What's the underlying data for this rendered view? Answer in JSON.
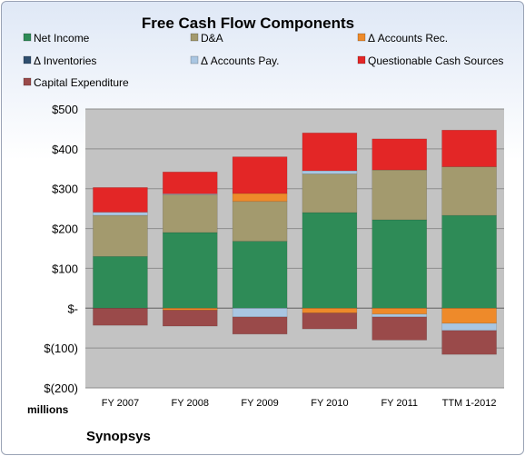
{
  "chart_data": {
    "type": "bar",
    "stacked": true,
    "title": "Free Cash Flow Components",
    "company": "Synopsys",
    "unit_label": "millions",
    "categories": [
      "FY 2007",
      "FY 2008",
      "FY 2009",
      "FY 2010",
      "FY 2011",
      "TTM 1-2012"
    ],
    "ylim": [
      -200,
      500
    ],
    "y_ticks": [
      -200,
      -100,
      0,
      100,
      200,
      300,
      400,
      500
    ],
    "y_tick_labels": [
      "$(200)",
      "$(100)",
      "$-",
      "$100",
      "$200",
      "$300",
      "$400",
      "$500"
    ],
    "grid": true,
    "legend_position": "top",
    "series": [
      {
        "name": "Net Income",
        "color": "#2e8b57",
        "values": [
          130,
          190,
          168,
          240,
          222,
          233
        ]
      },
      {
        "name": "D&A",
        "color": "#a39a6e",
        "values": [
          103,
          95,
          100,
          97,
          125,
          122
        ]
      },
      {
        "name": "Δ Accounts Rec.",
        "color": "#ee8a2a",
        "values": [
          0,
          -5,
          20,
          -12,
          -15,
          -38
        ]
      },
      {
        "name": "Δ Inventories",
        "color": "#2f4f6f",
        "values": [
          0,
          0,
          0,
          0,
          0,
          0
        ]
      },
      {
        "name": "Δ Accounts Pay.",
        "color": "#a9c6e2",
        "values": [
          8,
          2,
          -22,
          8,
          -7,
          -18
        ]
      },
      {
        "name": "Questionable Cash Sources",
        "color": "#e32626",
        "values": [
          62,
          55,
          92,
          95,
          78,
          92
        ]
      },
      {
        "name": "Capital Expenditure",
        "color": "#9a4a4a",
        "values": [
          -43,
          -40,
          -43,
          -40,
          -58,
          -60
        ]
      }
    ]
  }
}
